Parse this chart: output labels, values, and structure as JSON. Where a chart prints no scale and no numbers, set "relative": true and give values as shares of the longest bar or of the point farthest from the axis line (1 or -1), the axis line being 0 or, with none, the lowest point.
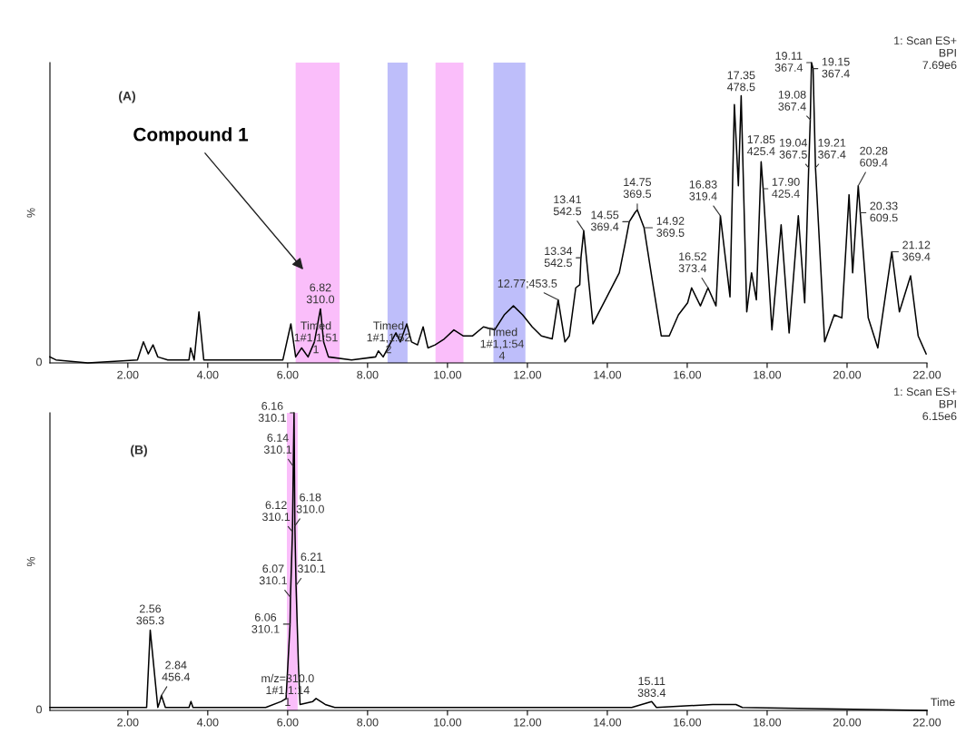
{
  "chart_data": [
    {
      "type": "line",
      "title": "(A)",
      "subtitle": "1: Scan ES+\nBPI\n7.69e6",
      "ylabel": "%",
      "relative": true,
      "color": "#000000",
      "xlim": [
        0.05,
        22.0
      ],
      "xticks": [
        {
          "value": 2,
          "label": "2.00"
        },
        {
          "value": 4,
          "label": "4.00"
        },
        {
          "value": 6,
          "label": "6.00"
        },
        {
          "value": 8,
          "label": "8.00"
        },
        {
          "value": 10,
          "label": "10.00"
        },
        {
          "value": 12,
          "label": "12.00"
        },
        {
          "value": 14,
          "label": "14.00"
        },
        {
          "value": 16,
          "label": "16.00"
        },
        {
          "value": 18,
          "label": "18.00"
        },
        {
          "value": 20,
          "label": "20.00"
        },
        {
          "value": 22,
          "label": "22.00"
        }
      ],
      "x": [
        0.05,
        0.2,
        1.0,
        2.24,
        2.39,
        2.51,
        2.63,
        2.75,
        3.0,
        3.53,
        3.57,
        3.66,
        3.78,
        3.9,
        5.0,
        5.88,
        6.08,
        6.2,
        6.35,
        6.51,
        6.67,
        6.82,
        6.9,
        7.02,
        7.6,
        8.2,
        8.27,
        8.39,
        8.71,
        8.82,
        8.98,
        9.1,
        9.25,
        9.39,
        9.51,
        9.69,
        9.92,
        10.16,
        10.39,
        10.63,
        10.9,
        11.18,
        11.42,
        11.65,
        11.88,
        12.12,
        12.35,
        12.62,
        12.77,
        12.94,
        13.05,
        13.21,
        13.31,
        13.34,
        13.41,
        13.64,
        13.99,
        14.3,
        14.45,
        14.55,
        14.69,
        14.75,
        14.92,
        15.12,
        15.35,
        15.55,
        15.78,
        16.01,
        16.11,
        16.33,
        16.52,
        16.72,
        16.83,
        17.07,
        17.18,
        17.28,
        17.35,
        17.49,
        17.61,
        17.73,
        17.85,
        17.9,
        18.12,
        18.35,
        18.55,
        18.78,
        18.94,
        19.04,
        19.08,
        19.11,
        19.15,
        19.21,
        19.44,
        19.68,
        19.87,
        20.05,
        20.14,
        20.28,
        20.33,
        20.53,
        20.77,
        21.12,
        21.31,
        21.59,
        21.78,
        21.98
      ],
      "values": [
        0.02,
        0.01,
        0.0,
        0.01,
        0.07,
        0.03,
        0.06,
        0.02,
        0.01,
        0.01,
        0.05,
        0.01,
        0.17,
        0.01,
        0.01,
        0.01,
        0.13,
        0.02,
        0.05,
        0.02,
        0.07,
        0.18,
        0.07,
        0.02,
        0.01,
        0.02,
        0.04,
        0.02,
        0.1,
        0.07,
        0.13,
        0.07,
        0.06,
        0.12,
        0.05,
        0.06,
        0.08,
        0.11,
        0.09,
        0.09,
        0.12,
        0.11,
        0.16,
        0.19,
        0.16,
        0.12,
        0.09,
        0.08,
        0.21,
        0.07,
        0.09,
        0.25,
        0.26,
        0.35,
        0.44,
        0.13,
        0.22,
        0.3,
        0.4,
        0.47,
        0.5,
        0.51,
        0.45,
        0.28,
        0.09,
        0.09,
        0.16,
        0.2,
        0.25,
        0.19,
        0.25,
        0.19,
        0.49,
        0.22,
        0.86,
        0.59,
        0.89,
        0.17,
        0.3,
        0.21,
        0.67,
        0.58,
        0.11,
        0.46,
        0.1,
        0.49,
        0.2,
        0.65,
        0.81,
        1.0,
        0.98,
        0.65,
        0.07,
        0.16,
        0.15,
        0.56,
        0.3,
        0.59,
        0.5,
        0.15,
        0.05,
        0.37,
        0.17,
        0.29,
        0.09,
        0.03
      ],
      "bands": [
        {
          "axis": "x",
          "from": 6.2,
          "to": 7.3,
          "color": "#fabefa"
        },
        {
          "axis": "x",
          "from": 8.5,
          "to": 9.0,
          "color": "#bebefa"
        },
        {
          "axis": "x",
          "from": 9.7,
          "to": 10.4,
          "color": "#fabefa"
        },
        {
          "axis": "x",
          "from": 11.15,
          "to": 11.95,
          "color": "#bebefa"
        }
      ],
      "annotations": [
        "Compound 1",
        "0",
        {
          "text": "6.82\n310.0",
          "x": 6.82,
          "y": 0.18
        },
        "Timed\n1#1,1:51\n1",
        "Timed\n1#1,1:52\n2",
        "Timed\n1#1,1:54\n4",
        {
          "text": "12.77;453.5",
          "x": 12.77,
          "y": 0.21
        },
        {
          "text": "13.34\n542.5",
          "x": 13.34,
          "y": 0.35
        },
        {
          "text": "13.41\n542.5",
          "x": 13.41,
          "y": 0.44
        },
        {
          "text": "14.55\n369.4",
          "x": 14.55,
          "y": 0.47
        },
        {
          "text": "14.75\n369.5",
          "x": 14.75,
          "y": 0.51
        },
        {
          "text": "14.92\n369.5",
          "x": 14.92,
          "y": 0.45
        },
        {
          "text": "16.52\n373.4",
          "x": 16.52,
          "y": 0.25
        },
        {
          "text": "16.83\n319.4",
          "x": 16.83,
          "y": 0.49
        },
        {
          "text": "17.35\n478.5",
          "x": 17.35,
          "y": 0.89
        },
        {
          "text": "17.85\n425.4",
          "x": 17.85,
          "y": 0.67
        },
        {
          "text": "17.90\n425.4",
          "x": 17.9,
          "y": 0.58
        },
        {
          "text": "19.04\n367.5",
          "x": 19.04,
          "y": 0.65
        },
        {
          "text": "19.08\n367.4",
          "x": 19.08,
          "y": 0.81
        },
        {
          "text": "19.11\n367.4",
          "x": 19.11,
          "y": 1.0
        },
        {
          "text": "19.15\n367.4",
          "x": 19.15,
          "y": 0.98
        },
        {
          "text": "19.21\n367.4",
          "x": 19.21,
          "y": 0.65
        },
        {
          "text": "20.28\n609.4",
          "x": 20.28,
          "y": 0.59
        },
        {
          "text": "20.33\n609.5",
          "x": 20.33,
          "y": 0.5
        },
        {
          "text": "21.12\n369.4",
          "x": 21.12,
          "y": 0.37
        }
      ]
    },
    {
      "type": "line",
      "title": "(B)",
      "subtitle": "1: Scan ES+\nBPI\n6.15e6",
      "ylabel": "%",
      "xlabel": "Time",
      "relative": true,
      "color": "#000000",
      "xlim": [
        0.05,
        22.0
      ],
      "xticks": [
        {
          "value": 2,
          "label": "2.00"
        },
        {
          "value": 4,
          "label": "4.00"
        },
        {
          "value": 6,
          "label": "6.00"
        },
        {
          "value": 8,
          "label": "8.00"
        },
        {
          "value": 10,
          "label": "10.00"
        },
        {
          "value": 12,
          "label": "12.00"
        },
        {
          "value": 14,
          "label": "14.00"
        },
        {
          "value": 16,
          "label": "16.00"
        },
        {
          "value": 18,
          "label": "18.00"
        },
        {
          "value": 20,
          "label": "20.00"
        },
        {
          "value": 22,
          "label": "22.00"
        }
      ],
      "x": [
        0.05,
        2.39,
        2.47,
        2.56,
        2.75,
        2.8,
        2.84,
        2.94,
        3.53,
        3.58,
        3.63,
        5.45,
        5.84,
        5.96,
        6.06,
        6.07,
        6.12,
        6.14,
        6.16,
        6.18,
        6.21,
        6.27,
        6.31,
        6.63,
        6.71,
        6.94,
        7.18,
        10.87,
        14.61,
        15.11,
        15.23,
        16.64,
        17.22,
        17.38,
        22.0
      ],
      "values": [
        0.01,
        0.01,
        0.01,
        0.27,
        0.01,
        0.03,
        0.05,
        0.01,
        0.01,
        0.03,
        0.01,
        0.01,
        0.03,
        0.04,
        0.29,
        0.38,
        0.6,
        0.82,
        1.0,
        0.62,
        0.42,
        0.15,
        0.02,
        0.03,
        0.04,
        0.02,
        0.01,
        0.01,
        0.01,
        0.03,
        0.01,
        0.02,
        0.02,
        0.01,
        0.0
      ],
      "bands": [
        {
          "axis": "x",
          "from": 5.98,
          "to": 6.25,
          "color": "#fabefa"
        }
      ],
      "annotations": [
        "0",
        {
          "text": "2.56\n365.3",
          "x": 2.56,
          "y": 0.27
        },
        {
          "text": "2.84\n456.4",
          "x": 2.84,
          "y": 0.05
        },
        {
          "text": "6.06\n310.1",
          "x": 6.06,
          "y": 0.29
        },
        {
          "text": "6.07\n310.1",
          "x": 6.07,
          "y": 0.38
        },
        {
          "text": "6.12\n310.1",
          "x": 6.12,
          "y": 0.6
        },
        {
          "text": "6.14\n310.1",
          "x": 6.14,
          "y": 0.82
        },
        {
          "text": "6.16\n310.1",
          "x": 6.16,
          "y": 1.0
        },
        {
          "text": "6.18\n310.0",
          "x": 6.18,
          "y": 0.62
        },
        {
          "text": "6.21\n310.1",
          "x": 6.21,
          "y": 0.42
        },
        {
          "text": "m/z=310.0\n1#1,1:14\n1",
          "x": 6.0,
          "y": 0.065
        },
        {
          "text": "15.11\n383.4",
          "x": 15.11,
          "y": 0.03
        }
      ]
    }
  ]
}
